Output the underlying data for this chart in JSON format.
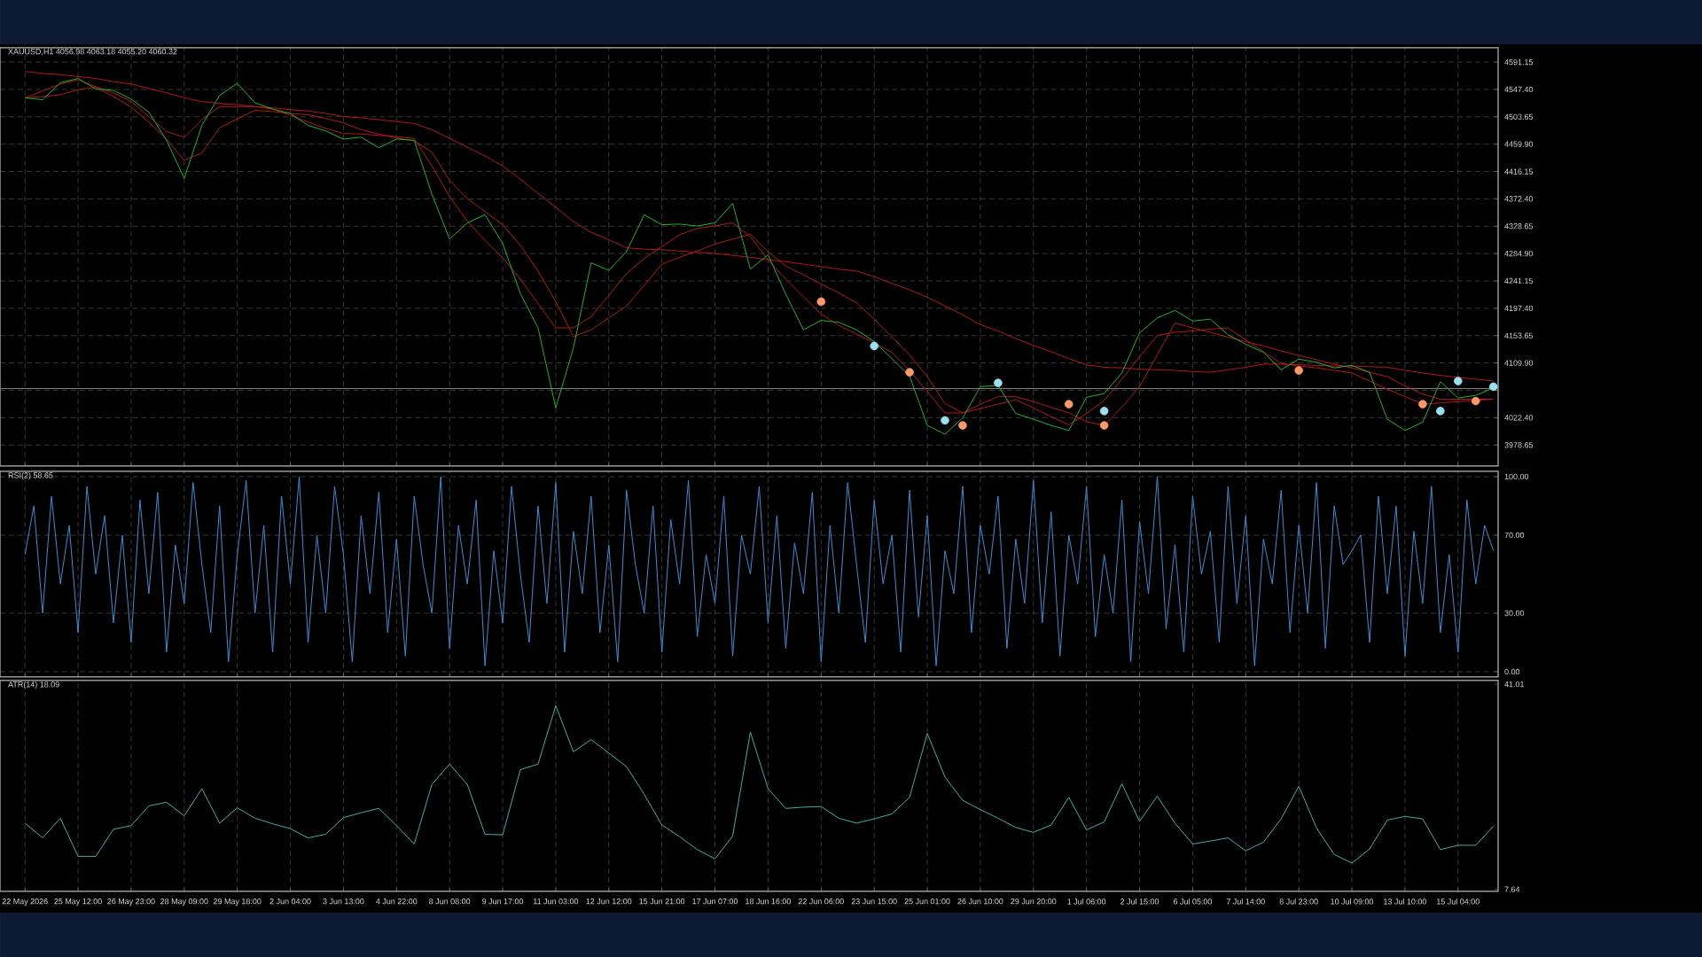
{
  "chart_data": [
    {
      "type": "line",
      "title": "XAUUSD,H1 4056.98 4063.18 4055.20 4060.32",
      "ylim": [
        3945,
        4614
      ],
      "grid": true,
      "tick_labels": "y",
      "categories": [
        null,
        null,
        null,
        null,
        null,
        null,
        null,
        null,
        null,
        null,
        null,
        null,
        null,
        null,
        null,
        null,
        null,
        null,
        null,
        null,
        null,
        null,
        null,
        null,
        null,
        null,
        null,
        null,
        null,
        null,
        null,
        null,
        null,
        null,
        null,
        null,
        null,
        null,
        null,
        null,
        null,
        null,
        null,
        null,
        null,
        null,
        null,
        null,
        null,
        null,
        null,
        null,
        null,
        null,
        null,
        null,
        null,
        null,
        null,
        null,
        null,
        null,
        null,
        null,
        null,
        null,
        null,
        null,
        null,
        null,
        null,
        null,
        null,
        null,
        null,
        null,
        null,
        null,
        null,
        null,
        null,
        null,
        null,
        null
      ],
      "yticks": [
        {
          "value": 4591.15,
          "label": "4591.15"
        },
        {
          "value": 4547.4,
          "label": "4547.40"
        },
        {
          "value": 4503.65,
          "label": "4503.65"
        },
        {
          "value": 4459.9,
          "label": "4459.90"
        },
        {
          "value": 4416.15,
          "label": "4416.15"
        },
        {
          "value": 4372.4,
          "label": "4372.40"
        },
        {
          "value": 4328.65,
          "label": "4328.65"
        },
        {
          "value": 4284.9,
          "label": "4284.90"
        },
        {
          "value": 4241.15,
          "label": "4241.15"
        },
        {
          "value": 4197.4,
          "label": "4197.40"
        },
        {
          "value": 4153.65,
          "label": "4153.65"
        },
        {
          "value": 4109.9,
          "label": "4109.90"
        },
        {
          "value": 4066.15,
          "label": null
        },
        {
          "value": 4022.4,
          "label": "4022.40"
        },
        {
          "value": 3978.65,
          "label": "3978.65"
        }
      ],
      "ref_lines": [
        {
          "axis": "y",
          "value": 4069,
          "color": "#808080"
        }
      ],
      "series": [
        {
          "color": "#b01818",
          "values": [
            4576,
            4573,
            4571,
            4568,
            4565,
            4560,
            4556,
            4549,
            4542,
            4534,
            4528,
            4525,
            4523,
            4520,
            4518,
            4515,
            4513,
            4509,
            4504,
            4502,
            4499,
            4496,
            4493,
            4483,
            4469,
            4455,
            4441,
            4425,
            4404,
            4381,
            4359,
            4336,
            4319,
            4307,
            4294,
            4292,
            4291,
            4289,
            4287,
            4285,
            4282,
            4279,
            4275,
            4272,
            4268,
            4264,
            4260,
            4257,
            4248,
            4237,
            4227,
            4215,
            4201,
            4187,
            4171,
            4161,
            4149,
            4138,
            4128,
            4117,
            4107,
            4103,
            4102,
            4100,
            4099,
            4098,
            4096,
            4095,
            4099,
            4103,
            4108,
            4108,
            4107,
            4106,
            4105,
            4105,
            4104,
            4103,
            4098,
            4094,
            4090,
            4087,
            4084,
            4081
          ]
        },
        {
          "color": "#b01818",
          "values": [
            4534,
            4536,
            4539,
            4547,
            4551,
            4536,
            4519,
            4495,
            4468,
            4434,
            4446,
            4486,
            4500,
            4514,
            4512,
            4509,
            4507,
            4501,
            4494,
            4483,
            4476,
            4470,
            4465,
            4447,
            4402,
            4373,
            4352,
            4331,
            4298,
            4257,
            4208,
            4152,
            4163,
            4182,
            4201,
            4234,
            4268,
            4279,
            4289,
            4300,
            4308,
            4316,
            4288,
            4265,
            4251,
            4236,
            4222,
            4206,
            4180,
            4152,
            4123,
            4088,
            4045,
            4030,
            4044,
            4056,
            4056,
            4048,
            4039,
            4030,
            4016,
            4010,
            4039,
            4072,
            4123,
            4174,
            4166,
            4159,
            4151,
            4144,
            4137,
            4129,
            4122,
            4115,
            4108,
            4102,
            4095,
            4088,
            4073,
            4060,
            4052,
            4052,
            4052,
            4052
          ]
        },
        {
          "color": "#b01818",
          "values": [
            4534,
            4545,
            4556,
            4563,
            4552,
            4542,
            4528,
            4504,
            4480,
            4471,
            4499,
            4520,
            4520,
            4520,
            4516,
            4506,
            4495,
            4485,
            4477,
            4476,
            4474,
            4472,
            4469,
            4425,
            4376,
            4337,
            4306,
            4278,
            4244,
            4205,
            4166,
            4166,
            4184,
            4218,
            4253,
            4277,
            4296,
            4315,
            4325,
            4329,
            4334,
            4312,
            4275,
            4244,
            4216,
            4188,
            4170,
            4156,
            4142,
            4127,
            4098,
            4064,
            4030,
            4030,
            4037,
            4044,
            4051,
            4038,
            4024,
            4011,
            4029,
            4050,
            4084,
            4120,
            4154,
            4159,
            4161,
            4164,
            4166,
            4147,
            4128,
            4109,
            4105,
            4102,
            4098,
            4094,
            4081,
            4068,
            4056,
            4044,
            4046,
            4048,
            4050,
            4052
          ]
        },
        {
          "color": "#22b422",
          "values": [
            4534,
            4531,
            4558,
            4565,
            4548,
            4546,
            4532,
            4511,
            4466,
            4405,
            4490,
            4538,
            4557,
            4526,
            4516,
            4509,
            4490,
            4481,
            4468,
            4471,
            4454,
            4468,
            4466,
            4380,
            4308,
            4334,
            4347,
            4301,
            4221,
            4166,
            4038,
            4134,
            4270,
            4258,
            4288,
            4347,
            4331,
            4332,
            4329,
            4334,
            4365,
            4260,
            4283,
            4220,
            4163,
            4178,
            4175,
            4163,
            4144,
            4117,
            4089,
            4010,
            3996,
            4022,
            4072,
            4074,
            4029,
            4020,
            4010,
            4002,
            4055,
            4061,
            4094,
            4158,
            4182,
            4194,
            4177,
            4180,
            4155,
            4140,
            4127,
            4099,
            4116,
            4111,
            4102,
            4106,
            4095,
            4020,
            4002,
            4015,
            4080,
            4054,
            4058,
            4070
          ]
        },
        {
          "type": "scatter",
          "marker": "circle",
          "color": "#ff9966",
          "values": [
            null,
            null,
            null,
            null,
            null,
            null,
            null,
            null,
            null,
            null,
            null,
            null,
            null,
            null,
            null,
            null,
            null,
            null,
            null,
            null,
            null,
            null,
            null,
            null,
            null,
            null,
            null,
            null,
            null,
            null,
            null,
            null,
            null,
            null,
            null,
            null,
            null,
            null,
            null,
            null,
            null,
            null,
            null,
            null,
            null,
            4208,
            null,
            null,
            null,
            null,
            4095,
            null,
            null,
            4010,
            null,
            null,
            null,
            null,
            null,
            4044,
            null,
            4010,
            null,
            null,
            null,
            null,
            null,
            null,
            null,
            null,
            null,
            null,
            4098,
            null,
            null,
            null,
            null,
            null,
            null,
            4044,
            null,
            null,
            4049,
            null
          ]
        },
        {
          "type": "scatter",
          "marker": "circle",
          "color": "#99e0f0",
          "values": [
            null,
            null,
            null,
            null,
            null,
            null,
            null,
            null,
            null,
            null,
            null,
            null,
            null,
            null,
            null,
            null,
            null,
            null,
            null,
            null,
            null,
            null,
            null,
            null,
            null,
            null,
            null,
            null,
            null,
            null,
            null,
            null,
            null,
            null,
            null,
            null,
            null,
            null,
            null,
            null,
            null,
            null,
            null,
            null,
            null,
            null,
            null,
            null,
            4137,
            null,
            null,
            null,
            4018,
            null,
            null,
            4078,
            null,
            null,
            null,
            null,
            null,
            4033,
            null,
            null,
            null,
            null,
            null,
            null,
            null,
            null,
            null,
            null,
            null,
            null,
            null,
            null,
            null,
            null,
            null,
            null,
            4033,
            4081,
            null,
            4072
          ]
        }
      ]
    },
    {
      "type": "line",
      "title": "RSI(2) 58.65",
      "ylim": [
        -2.7,
        102.7
      ],
      "grid": true,
      "tick_labels": "y",
      "categories": [
        null,
        null,
        null,
        null,
        null,
        null,
        null,
        null,
        null,
        null,
        null,
        null,
        null,
        null,
        null,
        null,
        null,
        null,
        null,
        null,
        null,
        null,
        null,
        null,
        null,
        null,
        null,
        null,
        null,
        null,
        null,
        null,
        null,
        null,
        null,
        null,
        null,
        null,
        null,
        null,
        null,
        null,
        null,
        null,
        null,
        null,
        null,
        null,
        null,
        null,
        null,
        null,
        null,
        null,
        null,
        null,
        null,
        null,
        null,
        null,
        null,
        null,
        null,
        null,
        null,
        null,
        null,
        null,
        null,
        null,
        null,
        null,
        null,
        null,
        null,
        null,
        null,
        null,
        null,
        null,
        null,
        null,
        null,
        null,
        null,
        null,
        null,
        null,
        null,
        null,
        null,
        null,
        null,
        null,
        null,
        null,
        null,
        null,
        null,
        null,
        null,
        null,
        null,
        null,
        null,
        null,
        null,
        null,
        null,
        null,
        null,
        null,
        null,
        null,
        null,
        null,
        null,
        null,
        null,
        null,
        null,
        null,
        null,
        null,
        null,
        null,
        null,
        null,
        null,
        null,
        null,
        null,
        null,
        null,
        null,
        null,
        null,
        null,
        null,
        null,
        null,
        null,
        null,
        null,
        null,
        null,
        null,
        null,
        null,
        null,
        null,
        null,
        null,
        null,
        null,
        null,
        null,
        null,
        null,
        null,
        null,
        null,
        null,
        null,
        null,
        null,
        null
      ],
      "yticks": [
        {
          "value": 100,
          "label": "100.00"
        },
        {
          "value": 70,
          "label": "70.00"
        },
        {
          "value": 30,
          "label": "30.00"
        },
        {
          "value": 0,
          "label": "0.00"
        }
      ],
      "series": [
        {
          "color": "#3a8fd8",
          "values": [
            60,
            85,
            30,
            90,
            45,
            75,
            20,
            95,
            50,
            80,
            25,
            70,
            15,
            88,
            40,
            92,
            10,
            65,
            35,
            97,
            55,
            20,
            85,
            5,
            60,
            98,
            30,
            75,
            10,
            90,
            45,
            100,
            15,
            70,
            30,
            95,
            60,
            5,
            80,
            40,
            92,
            20,
            68,
            8,
            90,
            55,
            30,
            100,
            12,
            75,
            45,
            88,
            3,
            62,
            25,
            95,
            50,
            15,
            85,
            35,
            97,
            10,
            72,
            40,
            90,
            20,
            65,
            5,
            93,
            55,
            30,
            85,
            10,
            78,
            45,
            98,
            18,
            60,
            35,
            90,
            8,
            70,
            50,
            95,
            25,
            80,
            12,
            66,
            40,
            92,
            5,
            75,
            30,
            97,
            55,
            15,
            88,
            45,
            70,
            10,
            93,
            28,
            80,
            3,
            62,
            40,
            95,
            20,
            75,
            50,
            90,
            12,
            68,
            35,
            98,
            25,
            82,
            8,
            70,
            45,
            95,
            18,
            60,
            30,
            88,
            5,
            77,
            40,
            100,
            22,
            65,
            10,
            90,
            50,
            72,
            15,
            95,
            35,
            80,
            3,
            68,
            45,
            93,
            20,
            75,
            30,
            97,
            12,
            85,
            55,
            62,
            70,
            15,
            90,
            40,
            85,
            8,
            72,
            35,
            95,
            20,
            60,
            10,
            88,
            45,
            75,
            62
          ]
        }
      ]
    },
    {
      "type": "line",
      "title": "ATR(14) 18.09",
      "ylim": [
        7.3,
        41.6
      ],
      "grid": "x",
      "categories": [
        "22 May 2026",
        null,
        null,
        "25 May 12:00",
        null,
        null,
        "26 May 23:00",
        null,
        null,
        "28 May 09:00",
        null,
        null,
        "29 May 18:00",
        null,
        null,
        "2 Jun 04:00",
        null,
        null,
        "3 Jun 13:00",
        null,
        null,
        "4 Jun 22:00",
        null,
        null,
        "8 Jun 08:00",
        null,
        null,
        "9 Jun 17:00",
        null,
        null,
        "11 Jun 03:00",
        null,
        null,
        "12 Jun 12:00",
        null,
        null,
        "15 Jun 21:00",
        null,
        null,
        "17 Jun 07:00",
        null,
        null,
        "18 Jun 16:00",
        null,
        null,
        "22 Jun 06:00",
        null,
        null,
        "23 Jun 15:00",
        null,
        null,
        "25 Jun 01:00",
        null,
        null,
        "26 Jun 10:00",
        null,
        null,
        "29 Jun 20:00",
        null,
        null,
        "1 Jul 06:00",
        null,
        null,
        "2 Jul 15:00",
        null,
        null,
        "6 Jul 05:00",
        null,
        null,
        "7 Jul 14:00",
        null,
        null,
        "8 Jul 23:00",
        null,
        null,
        "10 Jul 09:00",
        null,
        null,
        "13 Jul 10:00",
        null,
        null,
        "15 Jul 04:00",
        null,
        null
      ],
      "yticks": [
        {
          "value": 41.01,
          "label": "41.01"
        },
        {
          "value": 7.64,
          "label": "7.64"
        }
      ],
      "series": [
        {
          "color": "#40b0a0",
          "values": [
            18.4,
            16.0,
            19.2,
            13.0,
            13.0,
            17.4,
            18.0,
            21.2,
            21.8,
            19.6,
            24.0,
            18.4,
            20.9,
            19.2,
            18.3,
            17.5,
            16.0,
            16.6,
            19.3,
            20.1,
            20.8,
            18.0,
            15.0,
            24.7,
            28.0,
            24.7,
            16.6,
            16.5,
            27.1,
            28.0,
            37.5,
            30.0,
            32.0,
            29.8,
            27.6,
            23.1,
            18.1,
            16.2,
            14.1,
            12.6,
            16.3,
            33.2,
            24.0,
            20.8,
            21.0,
            21.1,
            19.2,
            18.4,
            19.1,
            19.9,
            22.6,
            33.0,
            25.9,
            22.1,
            20.6,
            19.2,
            17.7,
            16.9,
            18.1,
            22.6,
            17.3,
            18.6,
            24.8,
            18.7,
            22.8,
            18.4,
            15.0,
            15.5,
            16.0,
            13.9,
            15.3,
            19.1,
            24.4,
            17.6,
            13.3,
            11.9,
            14.2,
            18.9,
            19.5,
            19.1,
            14.1,
            14.8,
            14.8,
            17.9
          ]
        }
      ]
    }
  ]
}
